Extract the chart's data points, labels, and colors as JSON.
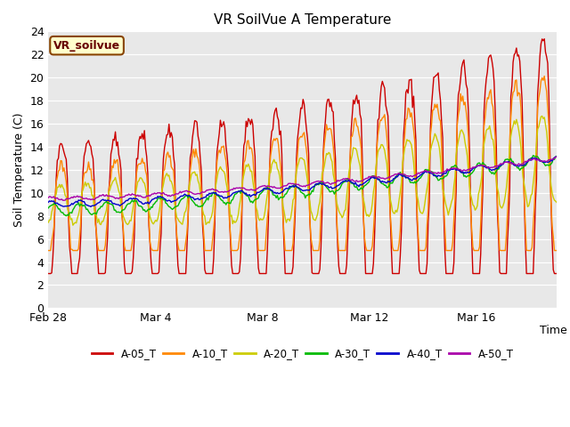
{
  "title": "VR SoilVue A Temperature",
  "ylabel": "Soil Temperature (C)",
  "xlabel": "Time",
  "ylim": [
    0,
    24
  ],
  "yticks": [
    0,
    2,
    4,
    6,
    8,
    10,
    12,
    14,
    16,
    18,
    20,
    22,
    24
  ],
  "series_keys": [
    "A-05_T",
    "A-10_T",
    "A-20_T",
    "A-30_T",
    "A-40_T",
    "A-50_T"
  ],
  "series_colors": [
    "#cc0000",
    "#ff8800",
    "#cccc00",
    "#00bb00",
    "#0000cc",
    "#aa00aa"
  ],
  "series_lw": [
    1.0,
    1.0,
    1.0,
    1.0,
    1.0,
    1.0
  ],
  "legend_label": "VR_soilvue",
  "legend_box_facecolor": "#ffffcc",
  "legend_box_edgecolor": "#884400",
  "bg_color": "#e8e8e8",
  "fig_facecolor": "#ffffff",
  "num_days": 19,
  "xtick_labels": [
    "Feb 28",
    "Mar 4",
    "Mar 8",
    "Mar 12",
    "Mar 16"
  ],
  "xtick_days": [
    0,
    4,
    8,
    12,
    16
  ]
}
